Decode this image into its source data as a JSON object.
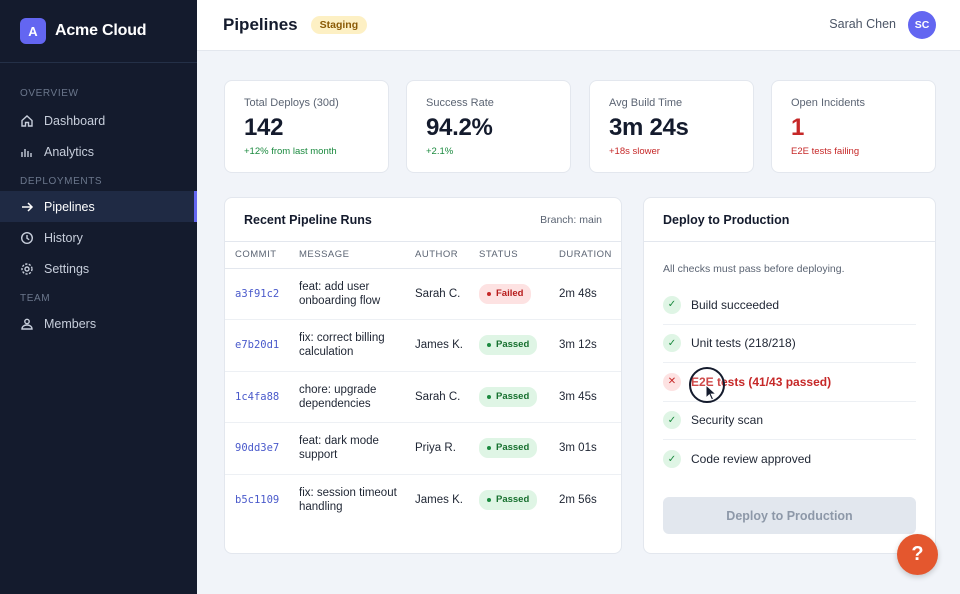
{
  "brand": {
    "logo_letter": "A",
    "name": "Acme Cloud"
  },
  "sidebar": {
    "sections": [
      {
        "label": "OVERVIEW",
        "items": [
          {
            "label": "Dashboard",
            "icon": "home-icon"
          },
          {
            "label": "Analytics",
            "icon": "chart-icon"
          }
        ]
      },
      {
        "label": "DEPLOYMENTS",
        "items": [
          {
            "label": "Pipelines",
            "icon": "arrow-right-icon",
            "active": true
          },
          {
            "label": "History",
            "icon": "clock-icon"
          },
          {
            "label": "Settings",
            "icon": "gear-icon"
          }
        ]
      },
      {
        "label": "TEAM",
        "items": [
          {
            "label": "Members",
            "icon": "users-icon"
          }
        ]
      }
    ]
  },
  "header": {
    "title": "Pipelines",
    "env_badge": "Staging",
    "user_name": "Sarah Chen",
    "user_initials": "SC"
  },
  "stats": [
    {
      "label": "Total Deploys (30d)",
      "value": "142",
      "note": "+12% from last month",
      "tone": "green"
    },
    {
      "label": "Success Rate",
      "value": "94.2%",
      "note": "+2.1%",
      "tone": "green"
    },
    {
      "label": "Avg Build Time",
      "value": "3m 24s",
      "note": "+18s slower",
      "tone": "red"
    },
    {
      "label": "Open Incidents",
      "value": "1",
      "note": "E2E tests failing",
      "tone": "red"
    }
  ],
  "runs": {
    "title": "Recent Pipeline Runs",
    "branch": "Branch: main",
    "columns": [
      "COMMIT",
      "MESSAGE",
      "AUTHOR",
      "STATUS",
      "DURATION"
    ],
    "rows": [
      {
        "commit": "a3f91c2",
        "message": "feat: add user onboarding flow",
        "author": "Sarah C.",
        "status": "Failed",
        "duration": "2m 48s"
      },
      {
        "commit": "e7b20d1",
        "message": "fix: correct billing calculation",
        "author": "James K.",
        "status": "Passed",
        "duration": "3m 12s"
      },
      {
        "commit": "1c4fa88",
        "message": "chore: upgrade dependencies",
        "author": "Sarah C.",
        "status": "Passed",
        "duration": "3m 45s"
      },
      {
        "commit": "90dd3e7",
        "message": "feat: dark mode support",
        "author": "Priya R.",
        "status": "Passed",
        "duration": "3m 01s"
      },
      {
        "commit": "b5c1109",
        "message": "fix: session timeout handling",
        "author": "James K.",
        "status": "Passed",
        "duration": "2m 56s"
      }
    ]
  },
  "deploy": {
    "title": "Deploy to Production",
    "description": "All checks must pass before deploying.",
    "checks": [
      {
        "label": "Build succeeded",
        "ok": true
      },
      {
        "label": "Unit tests (218/218)",
        "ok": true
      },
      {
        "label": "E2E tests (41/43 passed)",
        "ok": false
      },
      {
        "label": "Security scan",
        "ok": true
      },
      {
        "label": "Code review approved",
        "ok": true
      }
    ],
    "button_label": "Deploy to Production",
    "button_disabled": true
  },
  "help": {
    "label": "?"
  },
  "colors": {
    "accent": "#6366f1",
    "success": "#1b8a3f",
    "danger": "#c62828",
    "sidebar_bg": "#141b2d",
    "help": "#e4572e"
  }
}
